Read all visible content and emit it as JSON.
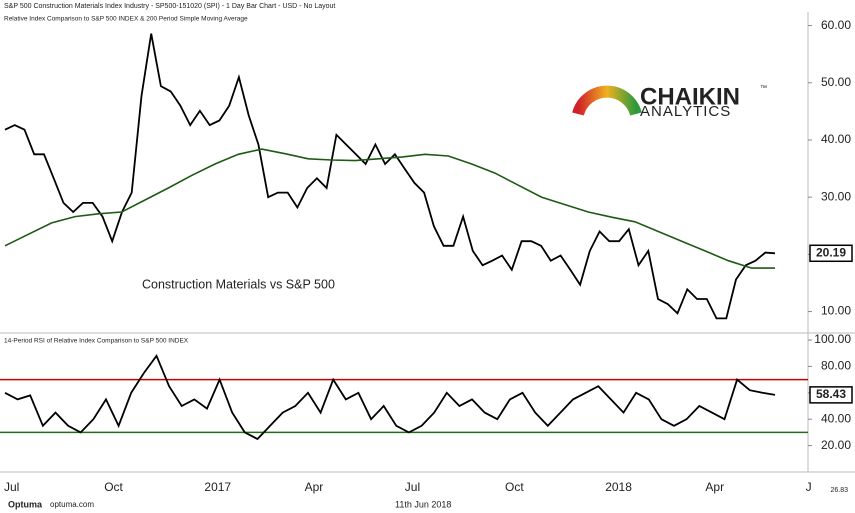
{
  "header": {
    "title": "S&P 500 Construction Materials Index Industry - SP500-151020 (SPI) - 1 Day Bar Chart - USD - No Layout"
  },
  "logo": {
    "name": "CHAIKIN",
    "mark": "™",
    "sub": "ANALYTICS"
  },
  "chart_data": [
    {
      "type": "line",
      "title": "Relative Index Comparison to S&P 500 INDEX & 200 Period Simple Moving Average",
      "annotation": "Construction Materials vs S&P 500",
      "ylim": [
        8,
        61.5
      ],
      "yticks": [
        {
          "value": 10,
          "label": "10.00"
        },
        {
          "value": 20,
          "label": "20.00"
        },
        {
          "value": 30,
          "label": "30.00"
        },
        {
          "value": 40,
          "label": "40.00"
        },
        {
          "value": 50,
          "label": "50.00"
        },
        {
          "value": 60,
          "label": "60.00"
        }
      ],
      "current_label": "20.19",
      "series": [
        {
          "color": "#000000",
          "values": [
            41.8,
            42.6,
            41.8,
            37.5,
            37.5,
            33.3,
            29,
            27.4,
            29,
            29,
            26.6,
            22.3,
            27.4,
            30.8,
            47.7,
            58.6,
            49.4,
            48.5,
            46,
            42.6,
            45.1,
            42.6,
            43.4,
            46,
            51,
            44.3,
            39.2,
            30,
            30.8,
            30.8,
            28.2,
            31.6,
            33.3,
            31.6,
            40.9,
            39.2,
            37.5,
            35.8,
            39.2,
            35.8,
            37.5,
            35,
            32.5,
            30.8,
            24.9,
            21.5,
            21.5,
            26.6,
            20.6,
            18.1,
            18.9,
            19.8,
            17.3,
            22.3,
            22.3,
            21.5,
            18.9,
            19.8,
            17.3,
            14.7,
            20.6,
            24,
            22.3,
            22.3,
            24.4,
            18.1,
            20.6,
            12.2,
            11.3,
            9.7,
            13.9,
            12.2,
            12.2,
            8.8,
            8.8,
            15.6,
            18.1,
            18.9,
            20.3,
            20.19
          ]
        },
        {
          "color": "#1e5a14",
          "values": [
            21.5,
            23.5,
            25.5,
            26.6,
            27.1,
            27.4,
            29.5,
            31.6,
            33.8,
            35.8,
            37.5,
            38.4,
            37.6,
            36.7,
            36.5,
            36.4,
            36.7,
            37,
            37.5,
            37.2,
            35.8,
            34.2,
            32.1,
            30,
            28.7,
            27.4,
            26.5,
            25.7,
            24,
            22.3,
            20.6,
            18.9,
            17.6,
            17.6
          ]
        }
      ]
    },
    {
      "type": "line",
      "title": "14-Period RSI of Relative Index Comparison to S&P 500 INDEX",
      "ylim": [
        0,
        100
      ],
      "yticks": [
        {
          "value": 20,
          "label": "20.00"
        },
        {
          "value": 40,
          "label": "40.00"
        },
        {
          "value": 60,
          "label": "60.00"
        },
        {
          "value": 80,
          "label": "80.00"
        },
        {
          "value": 100,
          "label": "100.00"
        }
      ],
      "levels": [
        {
          "value": 70,
          "color": "#cc0000"
        },
        {
          "value": 30,
          "color": "#1e6e14"
        }
      ],
      "current_label": "58.43",
      "series": [
        {
          "color": "#000000",
          "values": [
            60,
            55,
            58,
            35,
            45,
            35,
            30,
            40,
            55,
            35,
            60,
            75,
            88,
            65,
            50,
            55,
            48,
            70,
            45,
            30,
            25,
            35,
            45,
            50,
            60,
            45,
            70,
            55,
            60,
            40,
            50,
            35,
            30,
            35,
            45,
            60,
            50,
            55,
            45,
            40,
            55,
            60,
            45,
            35,
            45,
            55,
            60,
            65,
            55,
            45,
            60,
            55,
            40,
            35,
            40,
            50,
            45,
            40,
            70,
            62,
            60,
            58.43
          ]
        }
      ]
    }
  ],
  "x_labels": [
    "Jul",
    "Oct",
    "2017",
    "Apr",
    "Jul",
    "Oct",
    "2018",
    "Apr",
    "J"
  ],
  "footer": {
    "brand": "Optuma",
    "site": "optuma.com",
    "date": "11th Jun 2018",
    "corner": "26.83"
  }
}
